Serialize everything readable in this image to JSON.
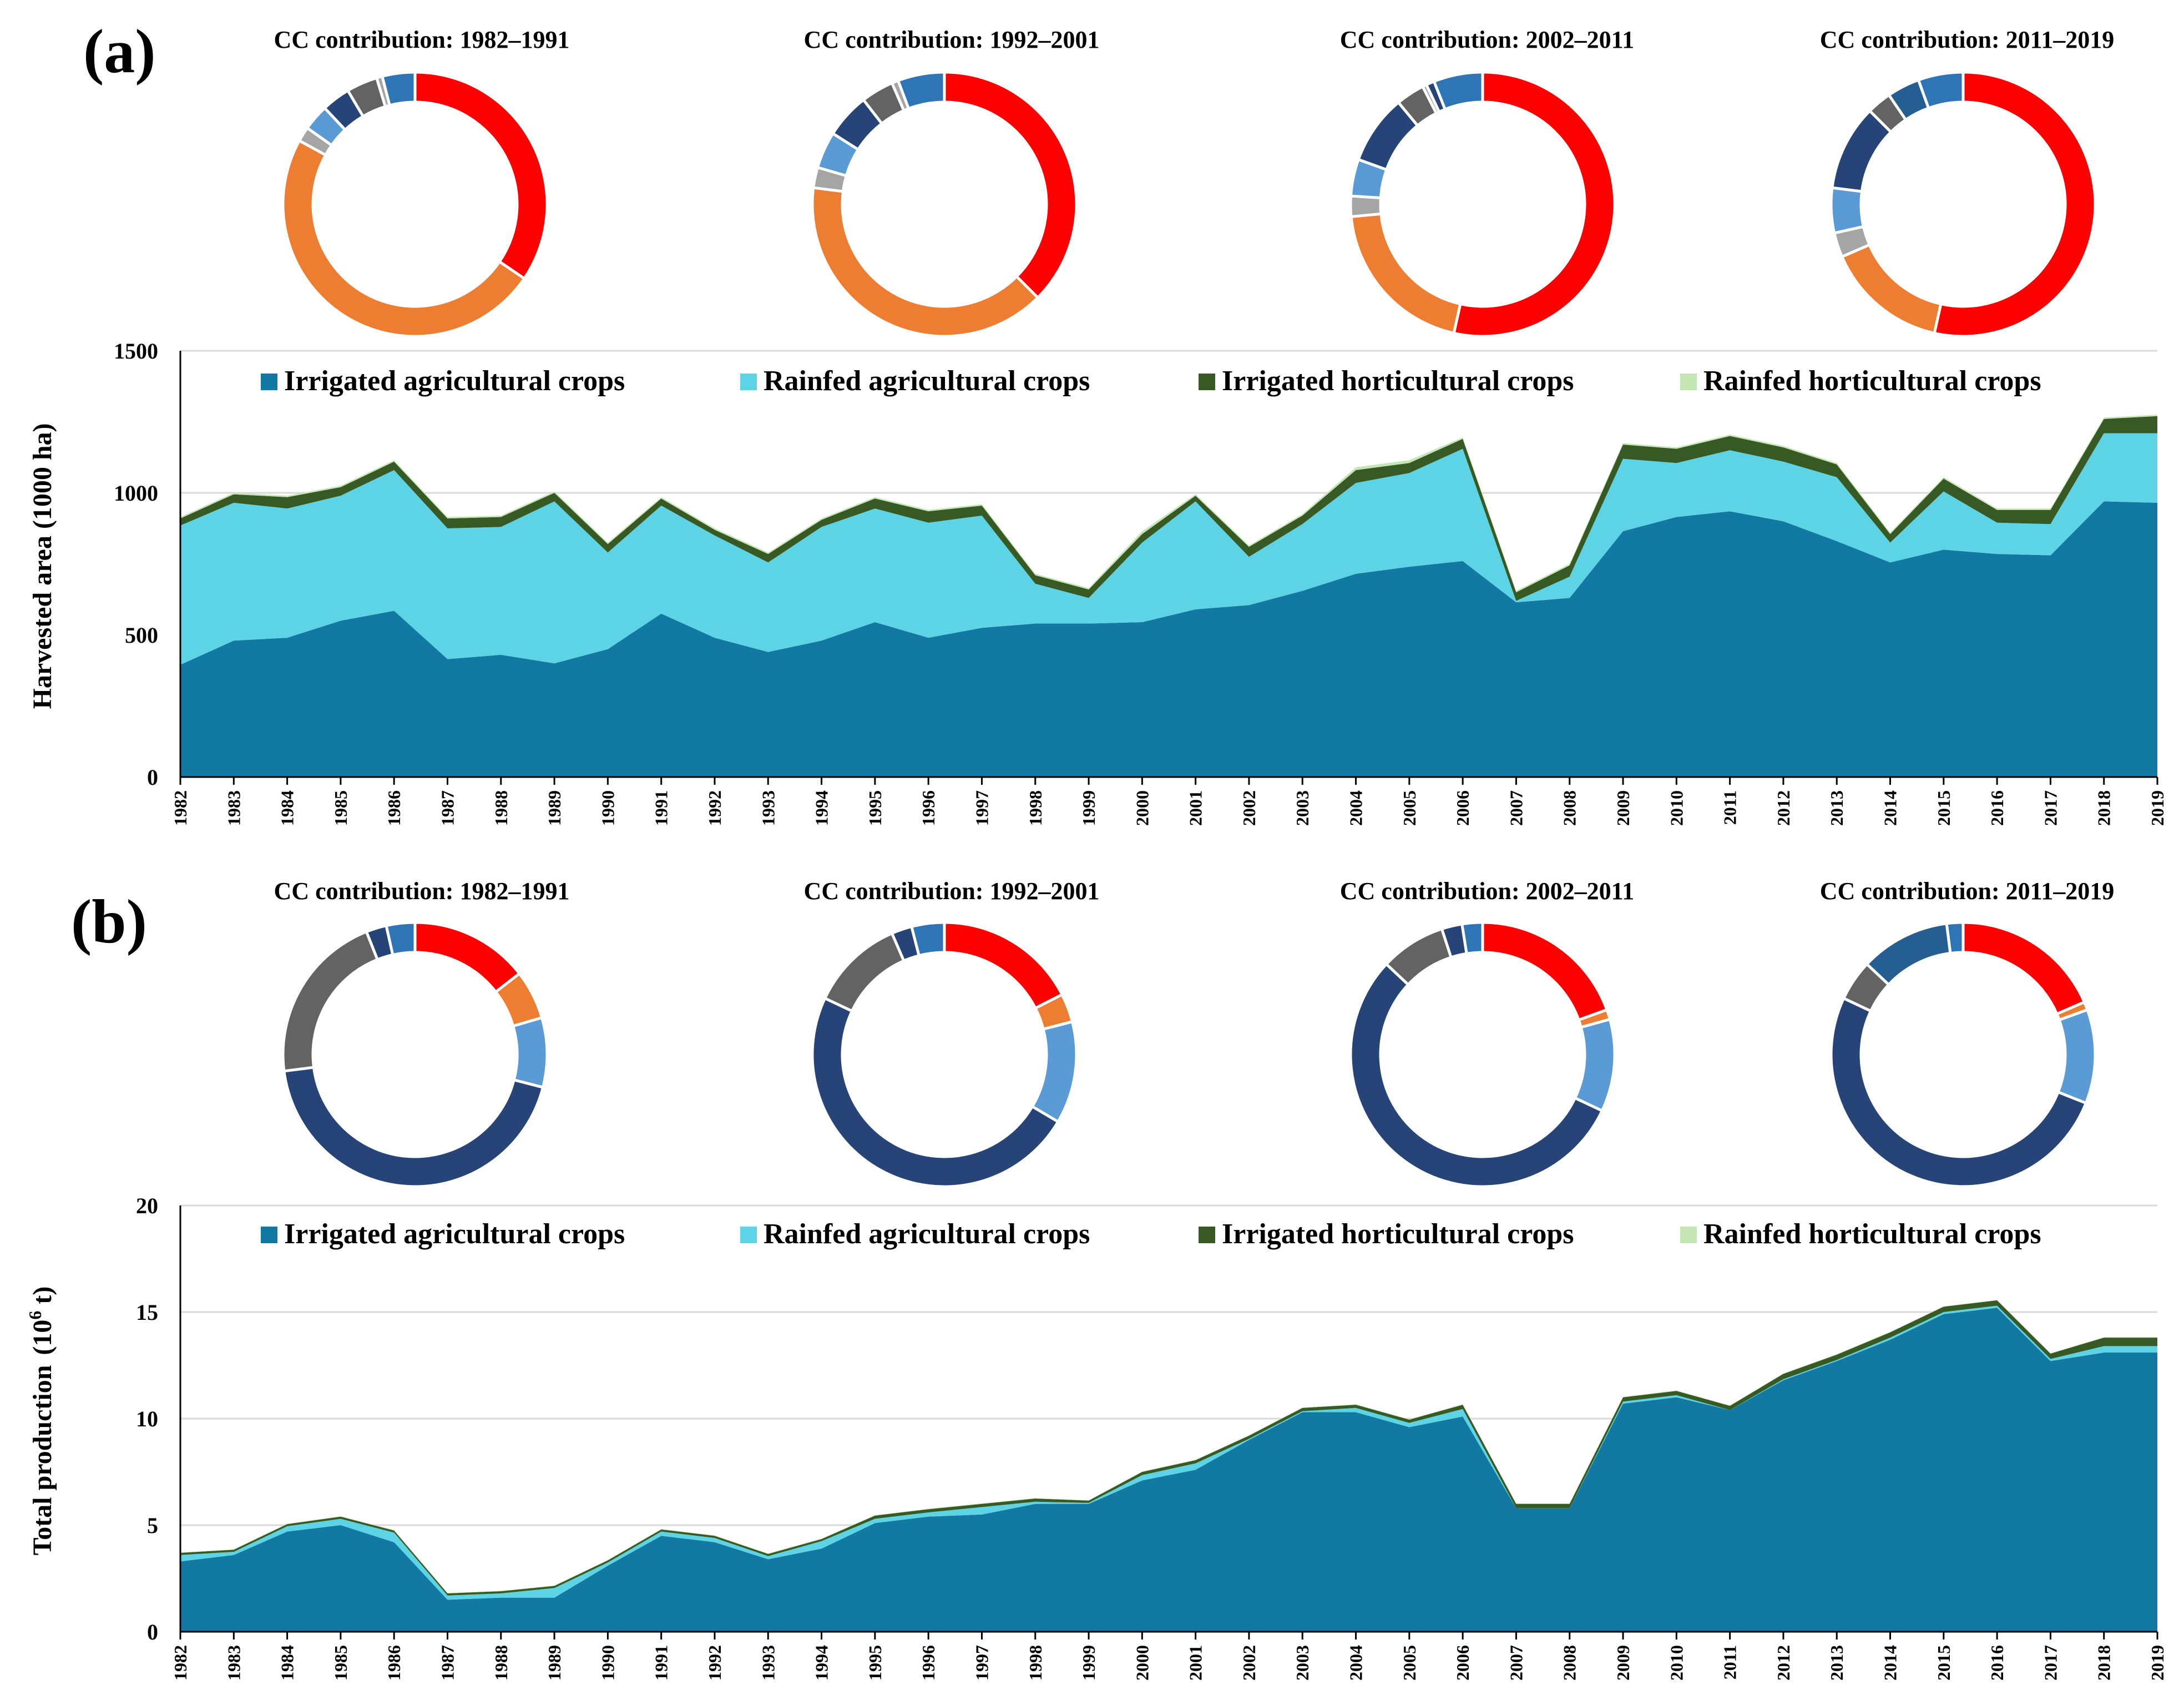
{
  "colors": {
    "irrigated_agricultural": "#1279A3",
    "rainfed_agricultural": "#5DD3E6",
    "irrigated_horticultural": "#375A24",
    "rainfed_horticultural": "#C4E6B3",
    "gridline": "#D9D9D9",
    "donut_red": "#FF0000",
    "donut_orange": "#ED7D31",
    "donut_lightgray": "#A5A5A5",
    "donut_lightblue": "#5B9BD5",
    "donut_navy": "#264478",
    "donut_darkgray": "#636363",
    "donut_blue": "#2E75B6",
    "donut_steel": "#255E91"
  },
  "chart_data": [
    {
      "id": "a",
      "type": "area",
      "stacked": true,
      "panel_label": "(a)",
      "ylabel": "Harvested area (1000 ha)",
      "xlabel": "",
      "ylim": [
        0,
        1500
      ],
      "yticks": [
        "0",
        "500",
        "1000",
        "1500"
      ],
      "grid": true,
      "legend_position": "top",
      "categories": [
        "1982",
        "1983",
        "1984",
        "1985",
        "1986",
        "1987",
        "1988",
        "1989",
        "1990",
        "1991",
        "1992",
        "1993",
        "1994",
        "1995",
        "1996",
        "1997",
        "1998",
        "1999",
        "2000",
        "2001",
        "2002",
        "2003",
        "2004",
        "2005",
        "2006",
        "2007",
        "2008",
        "2009",
        "2010",
        "2011",
        "2012",
        "2013",
        "2014",
        "2015",
        "2016",
        "2017",
        "2018",
        "2019"
      ],
      "series": [
        {
          "name": "Irrigated agricultural crops",
          "values": [
            395,
            480,
            490,
            550,
            585,
            415,
            430,
            400,
            450,
            575,
            490,
            440,
            480,
            545,
            490,
            525,
            540,
            540,
            545,
            590,
            605,
            655,
            715,
            740,
            760,
            615,
            630,
            865,
            915,
            935,
            900,
            830,
            755,
            800,
            785,
            780,
            970,
            965
          ]
        },
        {
          "name": "Rainfed agricultural crops",
          "values": [
            490,
            485,
            455,
            440,
            495,
            460,
            450,
            570,
            340,
            380,
            360,
            315,
            400,
            400,
            405,
            395,
            140,
            90,
            280,
            380,
            170,
            235,
            320,
            330,
            395,
            5,
            75,
            255,
            190,
            215,
            210,
            225,
            70,
            205,
            110,
            110,
            240,
            245
          ]
        },
        {
          "name": "Irrigated horticultural crops",
          "values": [
            25,
            30,
            40,
            30,
            30,
            35,
            35,
            30,
            30,
            25,
            20,
            30,
            25,
            35,
            40,
            35,
            30,
            30,
            30,
            20,
            35,
            30,
            45,
            35,
            35,
            30,
            40,
            50,
            50,
            50,
            50,
            45,
            30,
            45,
            45,
            50,
            50,
            60
          ]
        },
        {
          "name": "Rainfed horticultural crops",
          "values": [
            5,
            5,
            5,
            5,
            5,
            5,
            5,
            5,
            5,
            5,
            5,
            5,
            5,
            5,
            5,
            5,
            5,
            5,
            10,
            5,
            5,
            5,
            10,
            10,
            5,
            5,
            5,
            5,
            5,
            5,
            5,
            5,
            5,
            5,
            5,
            5,
            5,
            5
          ]
        }
      ],
      "donuts": [
        {
          "title": "CC contribution: 1982–1991",
          "slices": [
            {
              "color": "donut_red",
              "value": 34.5
            },
            {
              "color": "donut_orange",
              "value": 48.5
            },
            {
              "color": "donut_lightgray",
              "value": 1.8
            },
            {
              "color": "donut_lightblue",
              "value": 3.2
            },
            {
              "color": "donut_navy",
              "value": 3.5
            },
            {
              "color": "donut_darkgray",
              "value": 3.8
            },
            {
              "color": "donut_lightgray",
              "value": 0.7
            },
            {
              "color": "donut_blue",
              "value": 4.0
            }
          ]
        },
        {
          "title": "CC contribution: 1992–2001",
          "slices": [
            {
              "color": "donut_red",
              "value": 37.5
            },
            {
              "color": "donut_orange",
              "value": 39.5
            },
            {
              "color": "donut_lightgray",
              "value": 2.5
            },
            {
              "color": "donut_lightblue",
              "value": 4.5
            },
            {
              "color": "donut_navy",
              "value": 5.5
            },
            {
              "color": "donut_darkgray",
              "value": 4.0
            },
            {
              "color": "donut_lightgray",
              "value": 0.8
            },
            {
              "color": "donut_blue",
              "value": 5.7
            }
          ]
        },
        {
          "title": "CC contribution: 2002–2011",
          "slices": [
            {
              "color": "donut_red",
              "value": 53.5
            },
            {
              "color": "donut_orange",
              "value": 20.0
            },
            {
              "color": "donut_lightgray",
              "value": 2.5
            },
            {
              "color": "donut_lightblue",
              "value": 4.5
            },
            {
              "color": "donut_navy",
              "value": 8.5
            },
            {
              "color": "donut_darkgray",
              "value": 3.5
            },
            {
              "color": "donut_lightgray",
              "value": 0.5
            },
            {
              "color": "donut_navy",
              "value": 1.0
            },
            {
              "color": "donut_blue",
              "value": 6.0
            }
          ]
        },
        {
          "title": "CC contribution: 2011–2019",
          "slices": [
            {
              "color": "donut_red",
              "value": 53.5
            },
            {
              "color": "donut_orange",
              "value": 15.0
            },
            {
              "color": "donut_lightgray",
              "value": 3.0
            },
            {
              "color": "donut_lightblue",
              "value": 5.5
            },
            {
              "color": "donut_navy",
              "value": 10.5
            },
            {
              "color": "donut_darkgray",
              "value": 3.0
            },
            {
              "color": "donut_steel",
              "value": 4.0
            },
            {
              "color": "donut_blue",
              "value": 5.5
            }
          ]
        }
      ]
    },
    {
      "id": "b",
      "type": "area",
      "stacked": true,
      "panel_label": "(b)",
      "ylabel": "Total production",
      "ylabel_unit": "(10",
      "ylabel_unit_sup": "6",
      "ylabel_unit_tail": " t)",
      "xlabel": "",
      "ylim": [
        0,
        20
      ],
      "yticks": [
        "0",
        "5",
        "10",
        "15",
        "20"
      ],
      "grid": true,
      "legend_position": "top",
      "categories": [
        "1982",
        "1983",
        "1984",
        "1985",
        "1986",
        "1987",
        "1988",
        "1989",
        "1990",
        "1991",
        "1992",
        "1993",
        "1994",
        "1995",
        "1996",
        "1997",
        "1998",
        "1999",
        "2000",
        "2001",
        "2002",
        "2003",
        "2004",
        "2005",
        "2006",
        "2007",
        "2008",
        "2009",
        "2010",
        "2011",
        "2012",
        "2013",
        "2014",
        "2015",
        "2016",
        "2017",
        "2018",
        "2019"
      ],
      "series": [
        {
          "name": "Irrigated agricultural crops",
          "values": [
            3.3,
            3.6,
            4.7,
            5.0,
            4.2,
            1.5,
            1.6,
            1.6,
            3.1,
            4.5,
            4.2,
            3.4,
            3.9,
            5.1,
            5.4,
            5.5,
            6.0,
            6.0,
            7.1,
            7.6,
            9.0,
            10.3,
            10.3,
            9.6,
            10.1,
            5.8,
            5.8,
            10.7,
            11.0,
            10.4,
            11.8,
            12.7,
            13.7,
            14.9,
            15.2,
            12.7,
            13.1,
            13.1
          ]
        },
        {
          "name": "Rainfed agricultural crops",
          "values": [
            0.3,
            0.15,
            0.25,
            0.3,
            0.45,
            0.2,
            0.2,
            0.45,
            0.15,
            0.2,
            0.2,
            0.15,
            0.35,
            0.2,
            0.2,
            0.35,
            0.1,
            0.05,
            0.25,
            0.3,
            0.05,
            0.05,
            0.2,
            0.2,
            0.35,
            0.0,
            0.0,
            0.1,
            0.1,
            0.0,
            0.05,
            0.05,
            0.1,
            0.1,
            0.1,
            0.1,
            0.3,
            0.3
          ]
        },
        {
          "name": "Irrigated horticultural crops",
          "values": [
            0.1,
            0.1,
            0.1,
            0.1,
            0.1,
            0.1,
            0.1,
            0.1,
            0.1,
            0.1,
            0.1,
            0.1,
            0.1,
            0.15,
            0.15,
            0.15,
            0.15,
            0.1,
            0.15,
            0.15,
            0.15,
            0.15,
            0.15,
            0.15,
            0.2,
            0.2,
            0.2,
            0.2,
            0.2,
            0.2,
            0.25,
            0.25,
            0.25,
            0.25,
            0.25,
            0.25,
            0.4,
            0.4
          ]
        },
        {
          "name": "Rainfed horticultural crops",
          "values": [
            0.02,
            0.02,
            0.02,
            0.02,
            0.02,
            0.02,
            0.02,
            0.02,
            0.02,
            0.02,
            0.02,
            0.02,
            0.02,
            0.02,
            0.02,
            0.02,
            0.02,
            0.02,
            0.02,
            0.02,
            0.02,
            0.02,
            0.02,
            0.02,
            0.02,
            0.02,
            0.02,
            0.02,
            0.02,
            0.02,
            0.02,
            0.02,
            0.02,
            0.02,
            0.02,
            0.02,
            0.02,
            0.02
          ]
        }
      ],
      "donuts": [
        {
          "title": "CC contribution: 1982–1991",
          "slices": [
            {
              "color": "donut_red",
              "value": 14.5
            },
            {
              "color": "donut_orange",
              "value": 6.0
            },
            {
              "color": "donut_lightblue",
              "value": 8.5
            },
            {
              "color": "donut_navy",
              "value": 44.0
            },
            {
              "color": "donut_darkgray",
              "value": 21.0
            },
            {
              "color": "donut_navy",
              "value": 2.5
            },
            {
              "color": "donut_blue",
              "value": 3.5
            }
          ]
        },
        {
          "title": "CC contribution: 1992–2001",
          "slices": [
            {
              "color": "donut_red",
              "value": 17.5
            },
            {
              "color": "donut_orange",
              "value": 3.5
            },
            {
              "color": "donut_lightblue",
              "value": 12.5
            },
            {
              "color": "donut_navy",
              "value": 48.5
            },
            {
              "color": "donut_darkgray",
              "value": 11.5
            },
            {
              "color": "donut_navy",
              "value": 2.5
            },
            {
              "color": "donut_blue",
              "value": 4.0
            }
          ]
        },
        {
          "title": "CC contribution: 2002–2011",
          "slices": [
            {
              "color": "donut_red",
              "value": 19.5
            },
            {
              "color": "donut_orange",
              "value": 1.2
            },
            {
              "color": "donut_lightblue",
              "value": 11.3
            },
            {
              "color": "donut_navy",
              "value": 55.0
            },
            {
              "color": "donut_darkgray",
              "value": 8.0
            },
            {
              "color": "donut_navy",
              "value": 2.5
            },
            {
              "color": "donut_blue",
              "value": 2.5
            }
          ]
        },
        {
          "title": "CC contribution: 2011–2019",
          "slices": [
            {
              "color": "donut_red",
              "value": 18.5
            },
            {
              "color": "donut_orange",
              "value": 1.0
            },
            {
              "color": "donut_lightblue",
              "value": 11.5
            },
            {
              "color": "donut_navy",
              "value": 51.0
            },
            {
              "color": "donut_darkgray",
              "value": 5.0
            },
            {
              "color": "donut_steel",
              "value": 11.0
            },
            {
              "color": "donut_blue",
              "value": 2.0
            }
          ]
        }
      ]
    }
  ]
}
